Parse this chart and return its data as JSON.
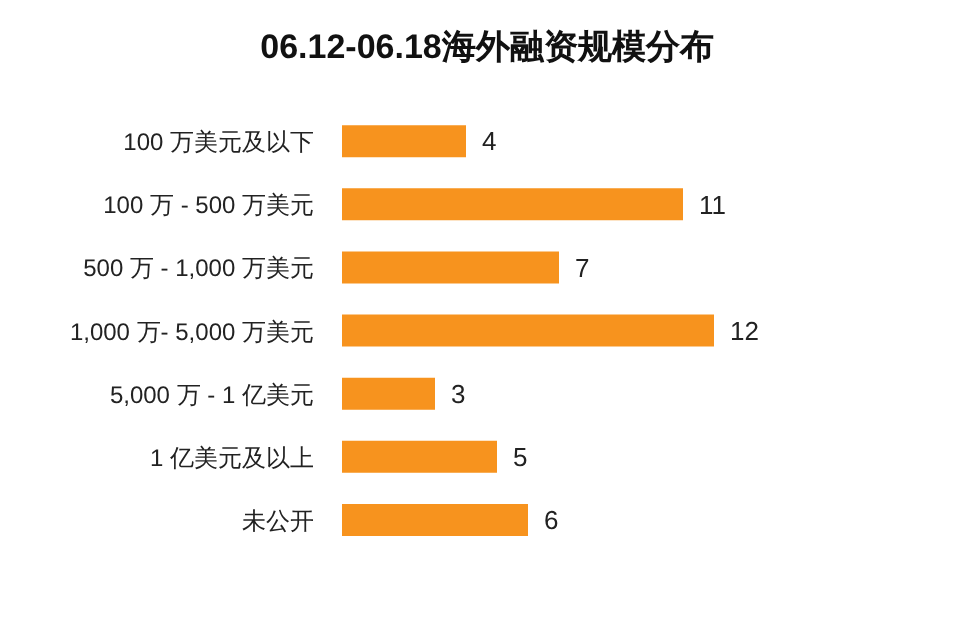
{
  "chart_data": {
    "type": "bar",
    "orientation": "horizontal",
    "title": "06.12-06.18海外融资规模分布",
    "categories": [
      "100 万美元及以下",
      "100 万 - 500 万美元",
      "500 万 - 1,000 万美元",
      "1,000 万- 5,000 万美元",
      "5,000 万 - 1 亿美元",
      "1 亿美元及以上",
      "未公开"
    ],
    "values": [
      4,
      11,
      7,
      12,
      3,
      5,
      6
    ],
    "color": "#f7931e",
    "data_labels": true,
    "grid": false,
    "legend": false
  }
}
